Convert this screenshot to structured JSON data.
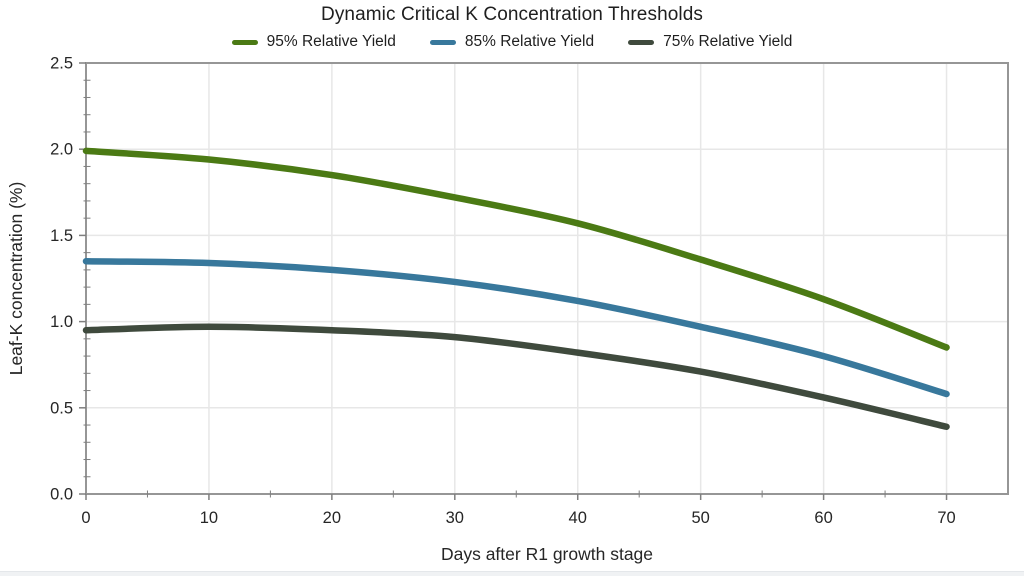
{
  "chart_data": {
    "type": "line",
    "title": "Dynamic Critical K Concentration Thresholds",
    "xlabel": "Days after R1 growth stage",
    "ylabel": "Leaf-K concentration (%)",
    "x": [
      0,
      10,
      20,
      30,
      40,
      50,
      60,
      70
    ],
    "series": [
      {
        "name": "95% Relative Yield",
        "color": "#4b7a14",
        "values": [
          1.99,
          1.94,
          1.85,
          1.72,
          1.57,
          1.36,
          1.13,
          0.85
        ]
      },
      {
        "name": "85% Relative Yield",
        "color": "#38789c",
        "values": [
          1.35,
          1.34,
          1.3,
          1.23,
          1.12,
          0.97,
          0.8,
          0.58
        ]
      },
      {
        "name": "75% Relative Yield",
        "color": "#3f4a3d",
        "values": [
          0.95,
          0.97,
          0.95,
          0.91,
          0.82,
          0.71,
          0.56,
          0.39
        ]
      }
    ],
    "xlim": [
      0,
      75
    ],
    "ylim": [
      0,
      2.5
    ],
    "x_ticks": [
      "0",
      "10",
      "20",
      "30",
      "40",
      "50",
      "60",
      "70"
    ],
    "x_tick_values": [
      0,
      10,
      20,
      30,
      40,
      50,
      60,
      70
    ],
    "y_ticks": [
      "0.0",
      "0.5",
      "1.0",
      "1.5",
      "2.0",
      "2.5"
    ],
    "y_tick_values": [
      0,
      0.5,
      1.0,
      1.5,
      2.0,
      2.5
    ],
    "x_minor_step": 5,
    "y_minor_step": 0.1,
    "grid": true,
    "legend_position": "top"
  },
  "style": {
    "axis_color": "#969696",
    "tick_color": "#7f7f7f",
    "grid_color": "#e7e7e7",
    "text_color": "#262626",
    "line_width": 6.5
  }
}
